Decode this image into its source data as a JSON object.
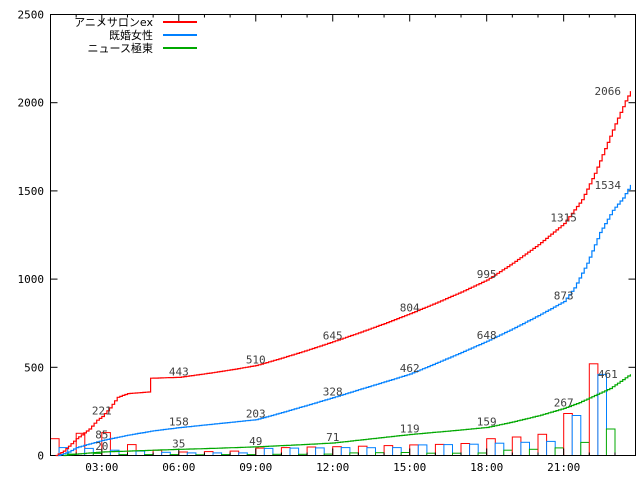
{
  "chart_data": {
    "type": "line",
    "title": "",
    "background": "#ffffff",
    "frame_color": "#000000",
    "label_color": "#404040",
    "x_axis": {
      "tick_hours": [
        3,
        6,
        9,
        12,
        15,
        18,
        21
      ],
      "tick_labels": [
        "03:00",
        "06:00",
        "09:00",
        "12:00",
        "15:00",
        "18:00",
        "21:00"
      ],
      "minor_tick_every_hours": 1,
      "range_hours": [
        1.0,
        23.8
      ]
    },
    "y_axis": {
      "tick_values": [
        0,
        500,
        1000,
        1500,
        2000,
        2500
      ],
      "tick_labels": [
        "0",
        "500",
        "1000",
        "1500",
        "2000",
        "2500"
      ],
      "range": [
        0,
        2500
      ]
    },
    "legend": [
      {
        "name": "アニメサロンex",
        "color": "#ff0000"
      },
      {
        "name": "既婚女性",
        "color": "#0080ff"
      },
      {
        "name": "ニュース極東",
        "color": "#00a800"
      }
    ],
    "series": [
      {
        "key": "anime-salon-ex",
        "name": "アニメサロンex",
        "color": "#ff0000",
        "points": [
          [
            1.2,
            0
          ],
          [
            1.5,
            25
          ],
          [
            2.0,
            95
          ],
          [
            2.5,
            150
          ],
          [
            2.8,
            200
          ],
          [
            3.0,
            221
          ],
          [
            3.3,
            270
          ],
          [
            3.6,
            330
          ],
          [
            4.0,
            351
          ],
          [
            4.8,
            360
          ],
          [
            4.9,
            438
          ],
          [
            5.5,
            441
          ],
          [
            6.0,
            443
          ],
          [
            7.0,
            463
          ],
          [
            8.0,
            485
          ],
          [
            9.0,
            510
          ],
          [
            10.0,
            552
          ],
          [
            11.0,
            597
          ],
          [
            12.0,
            645
          ],
          [
            13.0,
            695
          ],
          [
            14.0,
            748
          ],
          [
            15.0,
            804
          ],
          [
            16.0,
            864
          ],
          [
            17.0,
            927
          ],
          [
            18.0,
            995
          ],
          [
            19.0,
            1090
          ],
          [
            20.0,
            1195
          ],
          [
            21.0,
            1315
          ],
          [
            21.7,
            1450
          ],
          [
            22.2,
            1600
          ],
          [
            22.6,
            1740
          ],
          [
            23.0,
            1880
          ],
          [
            23.2,
            1945
          ],
          [
            23.4,
            2010
          ],
          [
            23.6,
            2066
          ]
        ],
        "labels": [
          {
            "t": 3,
            "v": 221,
            "text": "221"
          },
          {
            "t": 6,
            "v": 443,
            "text": "443"
          },
          {
            "t": 9,
            "v": 510,
            "text": "510"
          },
          {
            "t": 12,
            "v": 645,
            "text": "645"
          },
          {
            "t": 15,
            "v": 804,
            "text": "804"
          },
          {
            "t": 18,
            "v": 995,
            "text": "995"
          },
          {
            "t": 21,
            "v": 1315,
            "text": "1315"
          },
          {
            "t": 22.72,
            "v": 2066,
            "text": "2066",
            "end": true
          }
        ]
      },
      {
        "key": "kikon-josei",
        "name": "既婚女性",
        "color": "#0080ff",
        "points": [
          [
            1.3,
            0
          ],
          [
            1.7,
            20
          ],
          [
            2.0,
            45
          ],
          [
            2.5,
            65
          ],
          [
            3.0,
            85
          ],
          [
            3.5,
            100
          ],
          [
            4.0,
            115
          ],
          [
            5.0,
            140
          ],
          [
            6.0,
            158
          ],
          [
            7.0,
            173
          ],
          [
            8.0,
            188
          ],
          [
            9.0,
            203
          ],
          [
            10.0,
            243
          ],
          [
            11.0,
            285
          ],
          [
            12.0,
            328
          ],
          [
            13.0,
            373
          ],
          [
            14.0,
            417
          ],
          [
            15.0,
            462
          ],
          [
            16.0,
            522
          ],
          [
            17.0,
            584
          ],
          [
            18.0,
            648
          ],
          [
            19.0,
            718
          ],
          [
            20.0,
            793
          ],
          [
            21.0,
            873
          ],
          [
            21.4,
            950
          ],
          [
            21.9,
            1090
          ],
          [
            22.4,
            1264
          ],
          [
            22.9,
            1390
          ],
          [
            23.3,
            1460
          ],
          [
            23.6,
            1534
          ]
        ],
        "labels": [
          {
            "t": 3,
            "v": 85,
            "text": "85"
          },
          {
            "t": 6,
            "v": 158,
            "text": "158"
          },
          {
            "t": 9,
            "v": 203,
            "text": "203"
          },
          {
            "t": 12,
            "v": 328,
            "text": "328"
          },
          {
            "t": 15,
            "v": 462,
            "text": "462"
          },
          {
            "t": 18,
            "v": 648,
            "text": "648"
          },
          {
            "t": 21,
            "v": 873,
            "text": "873"
          },
          {
            "t": 22.72,
            "v": 1534,
            "text": "1534",
            "end": true
          }
        ]
      },
      {
        "key": "news-kyokutou",
        "name": "ニュース極東",
        "color": "#00a800",
        "points": [
          [
            1.5,
            0
          ],
          [
            2.0,
            8
          ],
          [
            3.0,
            20
          ],
          [
            4.0,
            25
          ],
          [
            5.0,
            30
          ],
          [
            6.0,
            35
          ],
          [
            7.0,
            39
          ],
          [
            8.0,
            44
          ],
          [
            9.0,
            49
          ],
          [
            10.0,
            56
          ],
          [
            11.0,
            63
          ],
          [
            12.0,
            71
          ],
          [
            13.0,
            87
          ],
          [
            14.0,
            103
          ],
          [
            15.0,
            119
          ],
          [
            16.0,
            132
          ],
          [
            17.0,
            145
          ],
          [
            18.0,
            159
          ],
          [
            19.0,
            190
          ],
          [
            20.0,
            225
          ],
          [
            21.0,
            267
          ],
          [
            21.6,
            300
          ],
          [
            22.2,
            340
          ],
          [
            22.8,
            380
          ],
          [
            23.3,
            430
          ],
          [
            23.6,
            461
          ]
        ],
        "labels": [
          {
            "t": 3,
            "v": 20,
            "text": "20"
          },
          {
            "t": 6,
            "v": 35,
            "text": "35"
          },
          {
            "t": 9,
            "v": 49,
            "text": "49"
          },
          {
            "t": 12,
            "v": 71,
            "text": "71"
          },
          {
            "t": 15,
            "v": 119,
            "text": "119"
          },
          {
            "t": 18,
            "v": 159,
            "text": "159"
          },
          {
            "t": 21,
            "v": 267,
            "text": "267"
          },
          {
            "t": 22.72,
            "v": 461,
            "text": "461",
            "end": true
          }
        ]
      }
    ],
    "hourly_bars": {
      "start_hours": [
        1,
        2,
        3,
        4,
        5,
        6,
        7,
        8,
        9,
        10,
        11,
        12,
        13,
        14,
        15,
        16,
        17,
        18,
        19,
        20,
        21,
        22
      ],
      "series": [
        {
          "key": "anime-salon-ex",
          "color": "#ff0000",
          "values": [
            95,
            126,
            130,
            62,
            30,
            20,
            22,
            25,
            42,
            45,
            48,
            50,
            53,
            56,
            60,
            63,
            68,
            95,
            105,
            120,
            238,
            520
          ]
        },
        {
          "key": "kikon-josei",
          "color": "#0080ff",
          "values": [
            45,
            40,
            30,
            25,
            18,
            15,
            15,
            15,
            40,
            42,
            43,
            45,
            44,
            45,
            60,
            62,
            64,
            70,
            75,
            80,
            227,
            460
          ]
        },
        {
          "key": "news-kyokutou",
          "color": "#00a800",
          "values": [
            8,
            12,
            5,
            5,
            5,
            4,
            5,
            5,
            7,
            7,
            8,
            15,
            16,
            17,
            13,
            13,
            14,
            30,
            35,
            43,
            74,
            150
          ]
        }
      ]
    }
  }
}
